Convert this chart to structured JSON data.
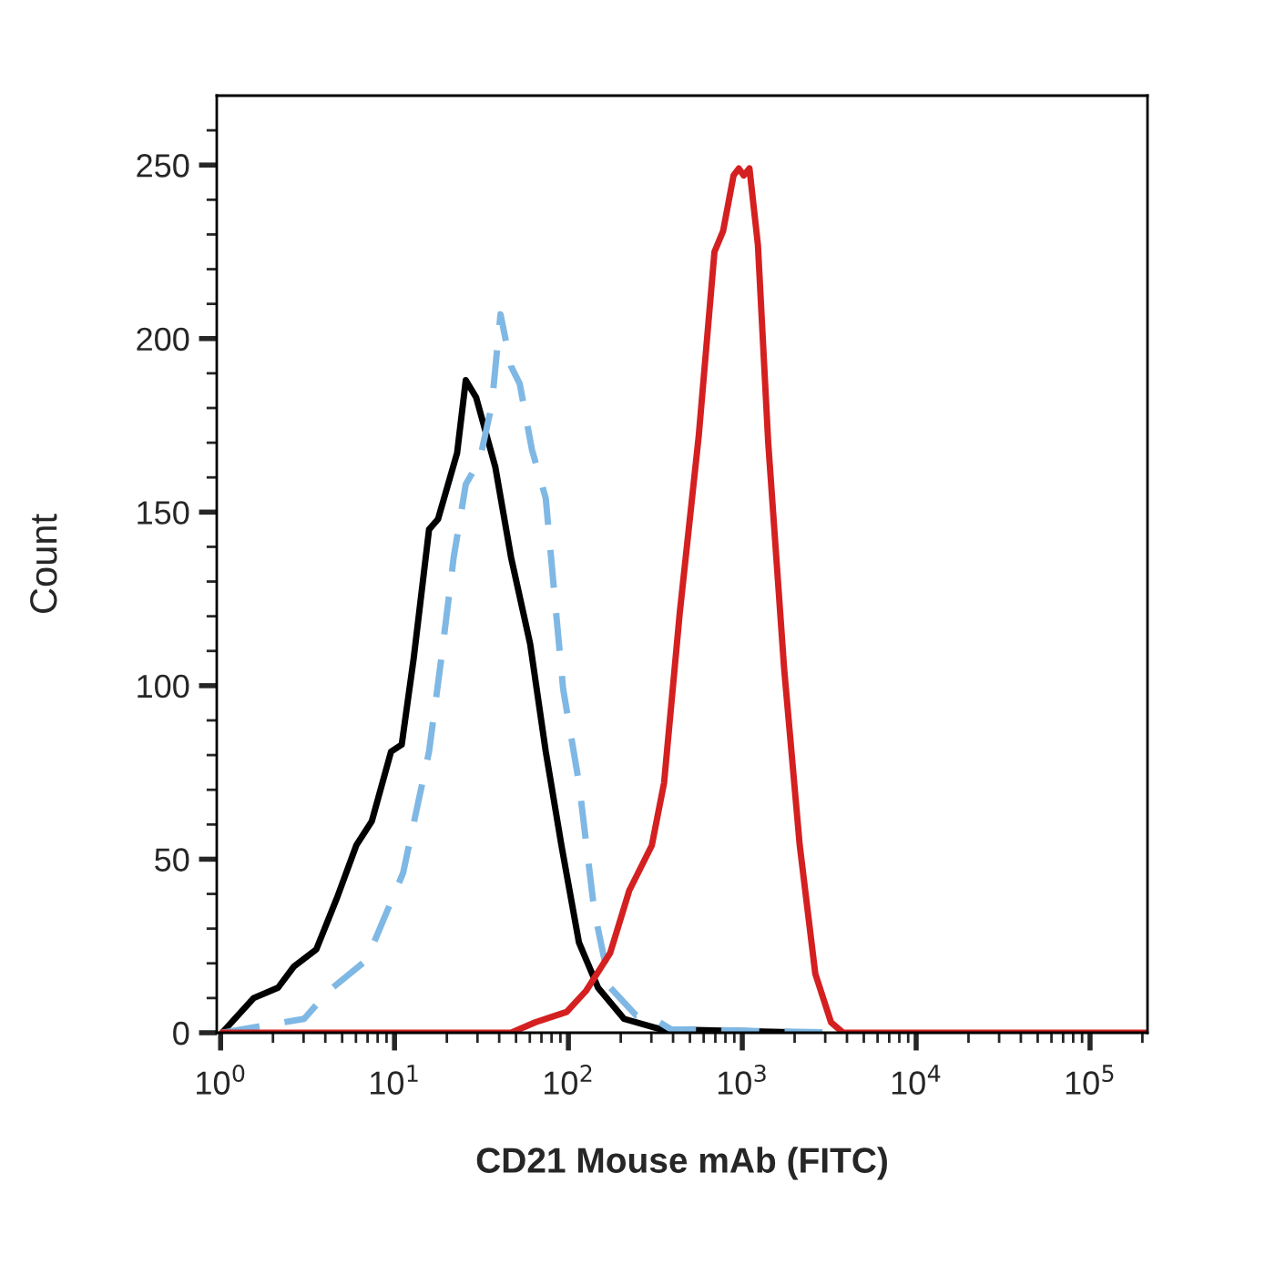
{
  "chart_data": {
    "type": "line",
    "xlabel": "CD21 Mouse mAb (FITC)",
    "ylabel": "Count",
    "log": "x",
    "grid": false,
    "xlim": [
      0.95,
      214000
    ],
    "xticks": [
      {
        "value": 1,
        "label": "10$^{0}$"
      },
      {
        "value": 10,
        "label": "10$^{1}$"
      },
      {
        "value": 100,
        "label": "10$^{2}$"
      },
      {
        "value": 1000,
        "label": "10$^{3}$"
      },
      {
        "value": 10000,
        "label": "10$^{4}$"
      },
      {
        "value": 100000,
        "label": "10$^{5}$"
      }
    ],
    "ylim": [
      0,
      270
    ],
    "yticks": [
      0,
      {
        "value": 10,
        "label": null
      },
      {
        "value": 20,
        "label": null
      },
      {
        "value": 30,
        "label": null
      },
      {
        "value": 40,
        "label": null
      },
      50,
      {
        "value": 60,
        "label": null
      },
      {
        "value": 70,
        "label": null
      },
      {
        "value": 80,
        "label": null
      },
      {
        "value": 90,
        "label": null
      },
      100,
      {
        "value": 110,
        "label": null
      },
      {
        "value": 120,
        "label": null
      },
      {
        "value": 130,
        "label": null
      },
      {
        "value": 140,
        "label": null
      },
      150,
      {
        "value": 160,
        "label": null
      },
      {
        "value": 170,
        "label": null
      },
      {
        "value": 180,
        "label": null
      },
      {
        "value": 190,
        "label": null
      },
      200,
      {
        "value": 210,
        "label": null
      },
      {
        "value": 220,
        "label": null
      },
      {
        "value": 230,
        "label": null
      },
      {
        "value": 240,
        "label": null
      },
      250,
      {
        "value": 260,
        "label": null
      }
    ],
    "series": [
      {
        "color": "#000000",
        "line_style": "solid",
        "x": [
          1.02,
          1.55,
          2.14,
          2.63,
          3.55,
          4.68,
          6.03,
          7.41,
          9.55,
          11.0,
          12.9,
          15.8,
          17.8,
          22.9,
          25.7,
          29.5,
          38.0,
          46.8,
          60.3,
          74.1,
          91.2,
          115,
          148,
          209,
          339,
          2510
        ],
        "values": [
          0,
          10,
          13,
          19,
          24,
          39,
          54,
          61,
          81,
          83,
          108,
          145,
          148,
          167,
          188,
          183,
          163,
          137,
          112,
          81,
          54,
          26,
          13,
          4,
          1,
          0
        ]
      },
      {
        "color": "#7fb8e4",
        "line_style": "dashed",
        "x": [
          1.02,
          3.02,
          4.17,
          6.92,
          11.2,
          15.8,
          18.6,
          21.9,
          25.7,
          30.9,
          36.3,
          40.7,
          46.8,
          52.5,
          61.7,
          74.1,
          83.2,
          93.3,
          115,
          141,
          174,
          245,
          288,
          389,
          3800
        ],
        "values": [
          0,
          4,
          12,
          21,
          46,
          81,
          108,
          137,
          158,
          165,
          181,
          207,
          192,
          187,
          168,
          154,
          126,
          99,
          72,
          35,
          13,
          5,
          5,
          1,
          0
        ]
      },
      {
        "color": "#d42020",
        "line_style": "solid",
        "x": [
          1.02,
          46.8,
          64.6,
          97.7,
          126,
          174,
          224,
          302,
          355,
          437,
          562,
          692,
          776,
          891,
          955,
          1020,
          1100,
          1230,
          1410,
          1740,
          2140,
          2630,
          3240,
          3800,
          214000
        ],
        "values": [
          0,
          0,
          3,
          6,
          12,
          23,
          41,
          54,
          72,
          121,
          172,
          225,
          231,
          247,
          249,
          247,
          249,
          227,
          170,
          105,
          54,
          17,
          3,
          0,
          0
        ]
      }
    ]
  }
}
